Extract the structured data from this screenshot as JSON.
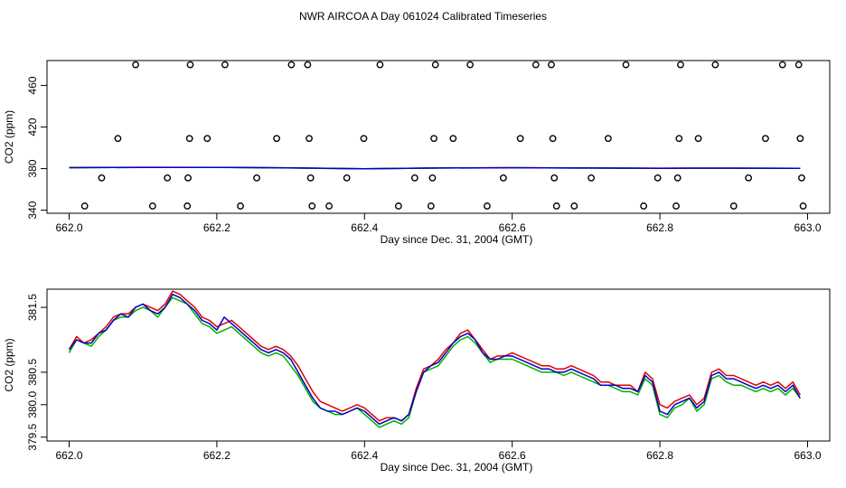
{
  "title": "NWR AIRCOA A  Day 061024  Calibrated Timeseries",
  "chart_data": [
    {
      "type": "scatter+line",
      "xlabel": "Day since Dec. 31, 2004 (GMT)",
      "ylabel": "CO2 (ppm)",
      "xlim": [
        661.97,
        663.03
      ],
      "ylim": [
        337,
        484
      ],
      "xticks": [
        662.0,
        662.2,
        662.4,
        662.6,
        662.8,
        663.0
      ],
      "xtick_labels": [
        "662.0",
        "662.2",
        "662.4",
        "662.6",
        "662.8",
        "663.0"
      ],
      "yticks": [
        340,
        380,
        420,
        460
      ],
      "ytick_labels": [
        "340",
        "380",
        "420",
        "460"
      ],
      "calibration_points": {
        "name": "standards",
        "x": [
          662.021,
          662.044,
          662.066,
          662.09,
          662.113,
          662.133,
          662.16,
          662.161,
          662.163,
          662.164,
          662.187,
          662.211,
          662.232,
          662.254,
          662.281,
          662.301,
          662.323,
          662.325,
          662.327,
          662.329,
          662.352,
          662.376,
          662.399,
          662.421,
          662.446,
          662.468,
          662.49,
          662.492,
          662.494,
          662.496,
          662.52,
          662.543,
          662.566,
          662.588,
          662.611,
          662.632,
          662.653,
          662.655,
          662.657,
          662.66,
          662.684,
          662.707,
          662.73,
          662.754,
          662.778,
          662.797,
          662.822,
          662.824,
          662.826,
          662.828,
          662.852,
          662.875,
          662.9,
          662.92,
          662.943,
          662.966,
          662.988,
          662.99,
          662.992,
          662.994
        ],
        "y": [
          344,
          371,
          409,
          480,
          344,
          371,
          344,
          371,
          409,
          480,
          409,
          480,
          344,
          371,
          409,
          480,
          480,
          409,
          371,
          344,
          344,
          371,
          409,
          480,
          344,
          371,
          344,
          371,
          409,
          480,
          409,
          480,
          344,
          371,
          409,
          480,
          480,
          409,
          371,
          344,
          344,
          371,
          409,
          480,
          344,
          371,
          344,
          371,
          409,
          480,
          409,
          480,
          344,
          371,
          409,
          480,
          480,
          409,
          371,
          344
        ]
      },
      "series": [
        {
          "name": "red",
          "color": "#e00000",
          "x": [
            662.0,
            662.1,
            662.2,
            662.3,
            662.4,
            662.5,
            662.6,
            662.7,
            662.8,
            662.9,
            662.99
          ],
          "values": [
            380.9,
            381.3,
            381.2,
            380.7,
            379.9,
            380.6,
            380.9,
            380.6,
            380.4,
            380.5,
            380.3
          ]
        },
        {
          "name": "green",
          "color": "#00b000",
          "x": [
            662.0,
            662.1,
            662.2,
            662.3,
            662.4,
            662.5,
            662.6,
            662.7,
            662.8,
            662.9,
            662.99
          ],
          "values": [
            380.9,
            381.2,
            381.1,
            380.6,
            379.8,
            380.6,
            380.8,
            380.6,
            380.3,
            380.4,
            380.2
          ]
        },
        {
          "name": "blue",
          "color": "#0000c8",
          "x": [
            662.0,
            662.1,
            662.2,
            662.3,
            662.4,
            662.5,
            662.6,
            662.7,
            662.8,
            662.9,
            662.99
          ],
          "values": [
            380.9,
            381.2,
            381.2,
            380.7,
            379.8,
            380.6,
            380.8,
            380.6,
            380.3,
            380.4,
            380.2
          ]
        }
      ]
    },
    {
      "type": "line",
      "xlabel": "Day since Dec. 31, 2004 (GMT)",
      "ylabel": "CO2 (ppm)",
      "xlim": [
        661.97,
        663.03
      ],
      "ylim": [
        379.44,
        381.78
      ],
      "xticks": [
        662.0,
        662.2,
        662.4,
        662.6,
        662.8,
        663.0
      ],
      "xtick_labels": [
        "662.0",
        "662.2",
        "662.4",
        "662.6",
        "662.8",
        "663.0"
      ],
      "yticks": [
        379.5,
        380.5,
        381.5
      ],
      "ytick_labels": [
        "379.5",
        "380.5",
        "381.5"
      ],
      "ytick_extra": [
        380.0
      ],
      "ytick_extra_labels": [
        "380.0"
      ],
      "series": [
        {
          "name": "red",
          "color": "#e00000",
          "x": [
            662.0,
            662.01,
            662.02,
            662.03,
            662.04,
            662.05,
            662.06,
            662.07,
            662.08,
            662.09,
            662.1,
            662.11,
            662.12,
            662.13,
            662.14,
            662.15,
            662.16,
            662.17,
            662.18,
            662.19,
            662.2,
            662.21,
            662.22,
            662.23,
            662.24,
            662.25,
            662.26,
            662.27,
            662.28,
            662.29,
            662.3,
            662.31,
            662.32,
            662.33,
            662.34,
            662.35,
            662.36,
            662.37,
            662.38,
            662.39,
            662.4,
            662.41,
            662.42,
            662.43,
            662.44,
            662.45,
            662.46,
            662.47,
            662.48,
            662.49,
            662.5,
            662.51,
            662.52,
            662.53,
            662.54,
            662.55,
            662.56,
            662.57,
            662.58,
            662.59,
            662.6,
            662.61,
            662.62,
            662.63,
            662.64,
            662.65,
            662.66,
            662.67,
            662.68,
            662.69,
            662.7,
            662.71,
            662.72,
            662.73,
            662.74,
            662.75,
            662.76,
            662.77,
            662.78,
            662.79,
            662.8,
            662.81,
            662.82,
            662.83,
            662.84,
            662.85,
            662.86,
            662.87,
            662.88,
            662.89,
            662.9,
            662.91,
            662.92,
            662.93,
            662.94,
            662.95,
            662.96,
            662.97,
            662.98,
            662.99
          ],
          "values": [
            380.85,
            381.05,
            380.95,
            381.0,
            381.1,
            381.2,
            381.35,
            381.4,
            381.4,
            381.5,
            381.55,
            381.5,
            381.45,
            381.55,
            381.75,
            381.7,
            381.6,
            381.5,
            381.35,
            381.3,
            381.2,
            381.25,
            381.3,
            381.2,
            381.1,
            381.0,
            380.9,
            380.85,
            380.9,
            380.85,
            380.75,
            380.6,
            380.4,
            380.2,
            380.05,
            380.0,
            379.95,
            379.9,
            379.95,
            380.0,
            379.95,
            379.85,
            379.75,
            379.8,
            379.8,
            379.75,
            379.85,
            380.25,
            380.55,
            380.6,
            380.7,
            380.85,
            380.95,
            381.1,
            381.15,
            381.0,
            380.85,
            380.7,
            380.75,
            380.75,
            380.8,
            380.75,
            380.7,
            380.65,
            380.6,
            380.6,
            380.55,
            380.55,
            380.6,
            380.55,
            380.5,
            380.45,
            380.35,
            380.35,
            380.3,
            380.3,
            380.3,
            380.2,
            380.5,
            380.4,
            380.0,
            379.95,
            380.05,
            380.1,
            380.15,
            380.0,
            380.1,
            380.5,
            380.55,
            380.45,
            380.45,
            380.4,
            380.35,
            380.3,
            380.35,
            380.3,
            380.35,
            380.25,
            380.35,
            380.15
          ]
        },
        {
          "name": "green",
          "color": "#00b000",
          "x": [
            662.0,
            662.01,
            662.02,
            662.03,
            662.04,
            662.05,
            662.06,
            662.07,
            662.08,
            662.09,
            662.1,
            662.11,
            662.12,
            662.13,
            662.14,
            662.15,
            662.16,
            662.17,
            662.18,
            662.19,
            662.2,
            662.21,
            662.22,
            662.23,
            662.24,
            662.25,
            662.26,
            662.27,
            662.28,
            662.29,
            662.3,
            662.31,
            662.32,
            662.33,
            662.34,
            662.35,
            662.36,
            662.37,
            662.38,
            662.39,
            662.4,
            662.41,
            662.42,
            662.43,
            662.44,
            662.45,
            662.46,
            662.47,
            662.48,
            662.49,
            662.5,
            662.51,
            662.52,
            662.53,
            662.54,
            662.55,
            662.56,
            662.57,
            662.58,
            662.59,
            662.6,
            662.61,
            662.62,
            662.63,
            662.64,
            662.65,
            662.66,
            662.67,
            662.68,
            662.69,
            662.7,
            662.71,
            662.72,
            662.73,
            662.74,
            662.75,
            662.76,
            662.77,
            662.78,
            662.79,
            662.8,
            662.81,
            662.82,
            662.83,
            662.84,
            662.85,
            662.86,
            662.87,
            662.88,
            662.89,
            662.9,
            662.91,
            662.92,
            662.93,
            662.94,
            662.95,
            662.96,
            662.97,
            662.98,
            662.99
          ],
          "values": [
            380.8,
            381.0,
            380.95,
            380.9,
            381.05,
            381.15,
            381.3,
            381.35,
            381.35,
            381.45,
            381.5,
            381.45,
            381.35,
            381.5,
            381.65,
            381.6,
            381.55,
            381.4,
            381.25,
            381.2,
            381.1,
            381.15,
            381.2,
            381.1,
            381.0,
            380.9,
            380.8,
            380.75,
            380.8,
            380.75,
            380.6,
            380.45,
            380.25,
            380.05,
            379.95,
            379.9,
            379.85,
            379.85,
            379.9,
            379.95,
            379.85,
            379.75,
            379.65,
            379.7,
            379.75,
            379.7,
            379.8,
            380.2,
            380.5,
            380.55,
            380.6,
            380.75,
            380.9,
            381.0,
            381.05,
            380.95,
            380.8,
            380.65,
            380.7,
            380.7,
            380.7,
            380.65,
            380.6,
            380.55,
            380.5,
            380.5,
            380.5,
            380.45,
            380.5,
            380.45,
            380.4,
            380.35,
            380.3,
            380.3,
            380.25,
            380.2,
            380.2,
            380.15,
            380.4,
            380.3,
            379.85,
            379.8,
            379.95,
            380.0,
            380.1,
            379.9,
            380.0,
            380.4,
            380.45,
            380.35,
            380.3,
            380.3,
            380.25,
            380.2,
            380.25,
            380.2,
            380.25,
            380.15,
            380.25,
            380.1
          ]
        },
        {
          "name": "blue",
          "color": "#0000c8",
          "x": [
            662.0,
            662.01,
            662.02,
            662.03,
            662.04,
            662.05,
            662.06,
            662.07,
            662.08,
            662.09,
            662.1,
            662.11,
            662.12,
            662.13,
            662.14,
            662.15,
            662.16,
            662.17,
            662.18,
            662.19,
            662.2,
            662.21,
            662.22,
            662.23,
            662.24,
            662.25,
            662.26,
            662.27,
            662.28,
            662.29,
            662.3,
            662.31,
            662.32,
            662.33,
            662.34,
            662.35,
            662.36,
            662.37,
            662.38,
            662.39,
            662.4,
            662.41,
            662.42,
            662.43,
            662.44,
            662.45,
            662.46,
            662.47,
            662.48,
            662.49,
            662.5,
            662.51,
            662.52,
            662.53,
            662.54,
            662.55,
            662.56,
            662.57,
            662.58,
            662.59,
            662.6,
            662.61,
            662.62,
            662.63,
            662.64,
            662.65,
            662.66,
            662.67,
            662.68,
            662.69,
            662.7,
            662.71,
            662.72,
            662.73,
            662.74,
            662.75,
            662.76,
            662.77,
            662.78,
            662.79,
            662.8,
            662.81,
            662.82,
            662.83,
            662.84,
            662.85,
            662.86,
            662.87,
            662.88,
            662.89,
            662.9,
            662.91,
            662.92,
            662.93,
            662.94,
            662.95,
            662.96,
            662.97,
            662.98,
            662.99
          ],
          "values": [
            380.85,
            381.0,
            380.95,
            380.95,
            381.1,
            381.15,
            381.3,
            381.4,
            381.35,
            381.5,
            381.55,
            381.45,
            381.4,
            381.5,
            381.7,
            381.65,
            381.55,
            381.45,
            381.3,
            381.25,
            381.15,
            381.35,
            381.25,
            381.15,
            381.05,
            380.95,
            380.85,
            380.8,
            380.85,
            380.8,
            380.7,
            380.5,
            380.3,
            380.1,
            379.95,
            379.9,
            379.9,
            379.85,
            379.9,
            379.95,
            379.9,
            379.8,
            379.7,
            379.75,
            379.8,
            379.75,
            379.85,
            380.2,
            380.5,
            380.6,
            380.65,
            380.8,
            380.95,
            381.05,
            381.1,
            381.0,
            380.8,
            380.7,
            380.7,
            380.75,
            380.75,
            380.7,
            380.65,
            380.6,
            380.55,
            380.55,
            380.5,
            380.5,
            380.55,
            380.5,
            380.45,
            380.4,
            380.3,
            380.3,
            380.3,
            380.25,
            380.25,
            380.2,
            380.45,
            380.35,
            379.9,
            379.85,
            380.0,
            380.05,
            380.1,
            379.95,
            380.05,
            380.45,
            380.5,
            380.4,
            380.4,
            380.35,
            380.3,
            380.25,
            380.3,
            380.25,
            380.3,
            380.2,
            380.3,
            380.1
          ]
        }
      ]
    }
  ]
}
